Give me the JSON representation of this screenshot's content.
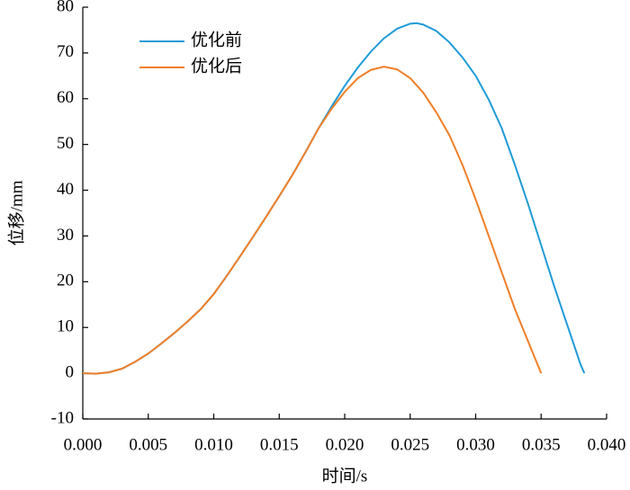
{
  "chart_data": {
    "type": "line",
    "xlabel": "时间/s",
    "ylabel": "位移/mm",
    "xlim": [
      0,
      0.04
    ],
    "ylim": [
      -10,
      80
    ],
    "xticks": [
      {
        "value": 0,
        "label": "0.000"
      },
      {
        "value": 0.005,
        "label": "0.005"
      },
      {
        "value": 0.01,
        "label": "0.010"
      },
      {
        "value": 0.015,
        "label": "0.015"
      },
      {
        "value": 0.02,
        "label": "0.020"
      },
      {
        "value": 0.025,
        "label": "0.025"
      },
      {
        "value": 0.03,
        "label": "0.030"
      },
      {
        "value": 0.035,
        "label": "0.035"
      },
      {
        "value": 0.04,
        "label": "0.040"
      }
    ],
    "yticks": [
      -10,
      0,
      10,
      20,
      30,
      40,
      50,
      60,
      70,
      80
    ],
    "legend": "upper left",
    "series": [
      {
        "name": "优化前",
        "color": "#1f9bd7",
        "x": [
          0,
          0.001,
          0.002,
          0.003,
          0.004,
          0.005,
          0.006,
          0.007,
          0.008,
          0.009,
          0.01,
          0.011,
          0.012,
          0.013,
          0.014,
          0.015,
          0.016,
          0.017,
          0.018,
          0.019,
          0.02,
          0.021,
          0.022,
          0.023,
          0.024,
          0.025,
          0.0255,
          0.026,
          0.027,
          0.028,
          0.029,
          0.03,
          0.031,
          0.032,
          0.033,
          0.034,
          0.035,
          0.036,
          0.037,
          0.038,
          0.0383
        ],
        "values": [
          0,
          -0.1,
          0.2,
          1,
          2.5,
          4.3,
          6.5,
          8.8,
          11.3,
          14,
          17.3,
          21.3,
          25.5,
          29.8,
          34.2,
          38.7,
          43.3,
          48.3,
          53.5,
          58.3,
          62.8,
          66.8,
          70.3,
          73.2,
          75.3,
          76.4,
          76.5,
          76.2,
          74.8,
          72.3,
          69,
          65,
          59.8,
          53.5,
          45.5,
          37,
          28,
          19,
          10.5,
          2,
          0
        ]
      },
      {
        "name": "优化后",
        "color": "#f07f28",
        "x": [
          0,
          0.001,
          0.002,
          0.003,
          0.004,
          0.005,
          0.006,
          0.007,
          0.008,
          0.009,
          0.01,
          0.011,
          0.012,
          0.013,
          0.014,
          0.015,
          0.016,
          0.017,
          0.018,
          0.019,
          0.02,
          0.021,
          0.022,
          0.023,
          0.024,
          0.025,
          0.026,
          0.027,
          0.028,
          0.029,
          0.03,
          0.031,
          0.032,
          0.033,
          0.034,
          0.035
        ],
        "values": [
          0,
          -0.1,
          0.2,
          1,
          2.5,
          4.3,
          6.5,
          8.8,
          11.3,
          14,
          17.3,
          21.3,
          25.5,
          29.8,
          34.2,
          38.7,
          43.3,
          48.3,
          53.5,
          57.8,
          61.5,
          64.5,
          66.3,
          67,
          66.4,
          64.5,
          61.3,
          57,
          52,
          45.5,
          38,
          30,
          22,
          14,
          7,
          0
        ]
      }
    ]
  }
}
